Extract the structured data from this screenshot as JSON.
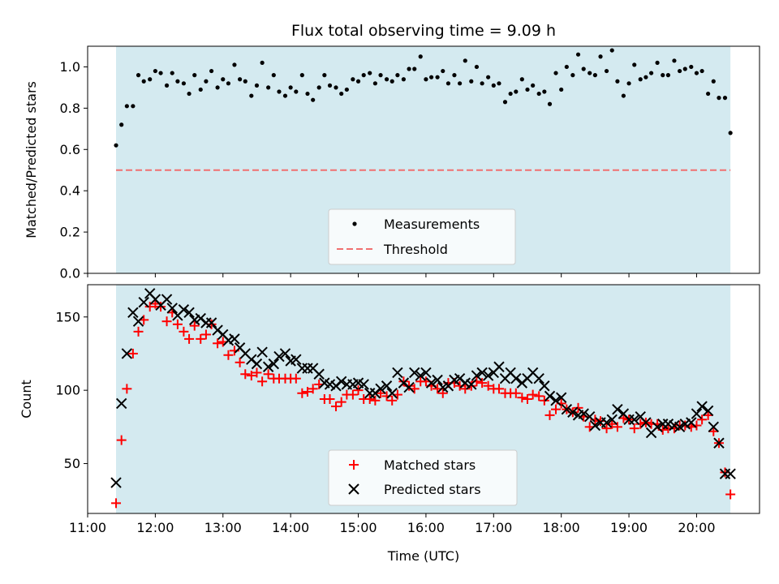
{
  "chart_data": {
    "title": "Flux total observing time = 9.09 h",
    "xlabel": "Time (UTC)",
    "x_unit": "hours UTC",
    "xlim": [
      11.0,
      20.93
    ],
    "xticks": [
      "11:00",
      "12:00",
      "13:00",
      "14:00",
      "15:00",
      "16:00",
      "17:00",
      "18:00",
      "19:00",
      "20:00"
    ],
    "shade": {
      "start": 11.42,
      "end": 20.5,
      "color": "#d4eaf0"
    },
    "top": {
      "type": "scatter",
      "ylabel": "Matched/Predicted stars",
      "ylim": [
        0.0,
        1.1
      ],
      "yticks": [
        "0.0",
        "0.2",
        "0.4",
        "0.6",
        "0.8",
        "1.0"
      ],
      "threshold": 0.5,
      "legend": {
        "position": "bottom-center",
        "entries": [
          "Measurements",
          "Threshold"
        ]
      },
      "x": [
        11.42,
        11.5,
        11.58,
        11.67,
        11.75,
        11.83,
        11.92,
        12.0,
        12.08,
        12.17,
        12.25,
        12.33,
        12.42,
        12.5,
        12.58,
        12.67,
        12.75,
        12.83,
        12.92,
        13.0,
        13.08,
        13.17,
        13.25,
        13.33,
        13.42,
        13.5,
        13.58,
        13.67,
        13.75,
        13.83,
        13.92,
        14.0,
        14.08,
        14.17,
        14.25,
        14.33,
        14.42,
        14.5,
        14.58,
        14.67,
        14.75,
        14.83,
        14.92,
        15.0,
        15.08,
        15.17,
        15.25,
        15.33,
        15.42,
        15.5,
        15.58,
        15.67,
        15.75,
        15.83,
        15.92,
        16.0,
        16.08,
        16.17,
        16.25,
        16.33,
        16.42,
        16.5,
        16.58,
        16.67,
        16.75,
        16.83,
        16.92,
        17.0,
        17.08,
        17.17,
        17.25,
        17.33,
        17.42,
        17.5,
        17.58,
        17.67,
        17.75,
        17.83,
        17.92,
        18.0,
        18.08,
        18.17,
        18.25,
        18.33,
        18.42,
        18.5,
        18.58,
        18.67,
        18.75,
        18.83,
        18.92,
        19.0,
        19.08,
        19.17,
        19.25,
        19.33,
        19.42,
        19.5,
        19.58,
        19.67,
        19.75,
        19.83,
        19.92,
        20.0,
        20.08,
        20.17,
        20.25,
        20.33,
        20.42,
        20.5
      ],
      "values": [
        0.62,
        0.72,
        0.81,
        0.81,
        0.96,
        0.93,
        0.94,
        0.98,
        0.97,
        0.91,
        0.97,
        0.93,
        0.92,
        0.87,
        0.96,
        0.89,
        0.93,
        0.98,
        0.9,
        0.94,
        0.92,
        1.01,
        0.94,
        0.93,
        0.86,
        0.91,
        1.02,
        0.9,
        0.96,
        0.88,
        0.86,
        0.9,
        0.88,
        0.96,
        0.87,
        0.84,
        0.9,
        0.96,
        0.91,
        0.9,
        0.87,
        0.89,
        0.94,
        0.93,
        0.96,
        0.97,
        0.92,
        0.96,
        0.94,
        0.93,
        0.96,
        0.94,
        0.99,
        0.99,
        1.05,
        0.94,
        0.95,
        0.95,
        0.98,
        0.92,
        0.96,
        0.92,
        1.03,
        0.93,
        1.0,
        0.92,
        0.95,
        0.91,
        0.92,
        0.83,
        0.87,
        0.88,
        0.94,
        0.89,
        0.91,
        0.87,
        0.88,
        0.82,
        0.97,
        0.89,
        1.0,
        0.96,
        1.06,
        0.99,
        0.97,
        0.96,
        1.05,
        0.98,
        1.08,
        0.93,
        0.86,
        0.92,
        1.01,
        0.94,
        0.95,
        0.97,
        1.02,
        0.96,
        0.96,
        1.03,
        0.98,
        0.99,
        1.0,
        0.97,
        0.98,
        0.87,
        0.93,
        0.85,
        0.85,
        0.68
      ]
    },
    "bottom": {
      "type": "scatter",
      "ylabel": "Count",
      "ylim": [
        16,
        172
      ],
      "yticks": [
        "50",
        "100",
        "150"
      ],
      "legend": {
        "position": "bottom-center",
        "entries": [
          "Matched stars",
          "Predicted stars"
        ]
      },
      "series": [
        {
          "name": "Matched stars",
          "color": "#ff0000",
          "marker": "plus",
          "x": [
            11.42,
            11.5,
            11.58,
            11.67,
            11.75,
            11.83,
            11.92,
            12.0,
            12.08,
            12.17,
            12.25,
            12.33,
            12.42,
            12.5,
            12.58,
            12.67,
            12.75,
            12.83,
            12.92,
            13.0,
            13.08,
            13.17,
            13.25,
            13.33,
            13.42,
            13.5,
            13.58,
            13.67,
            13.75,
            13.83,
            13.92,
            14.0,
            14.08,
            14.17,
            14.25,
            14.33,
            14.42,
            14.5,
            14.58,
            14.67,
            14.75,
            14.83,
            14.92,
            15.0,
            15.08,
            15.17,
            15.25,
            15.33,
            15.42,
            15.5,
            15.58,
            15.67,
            15.75,
            15.83,
            15.92,
            16.0,
            16.08,
            16.17,
            16.25,
            16.33,
            16.42,
            16.5,
            16.58,
            16.67,
            16.75,
            16.83,
            16.92,
            17.0,
            17.08,
            17.17,
            17.25,
            17.33,
            17.42,
            17.5,
            17.58,
            17.67,
            17.75,
            17.83,
            17.92,
            18.0,
            18.08,
            18.17,
            18.25,
            18.33,
            18.42,
            18.5,
            18.58,
            18.67,
            18.75,
            18.83,
            18.92,
            19.0,
            19.08,
            19.17,
            19.25,
            19.33,
            19.42,
            19.5,
            19.58,
            19.67,
            19.75,
            19.83,
            19.92,
            20.0,
            20.08,
            20.17,
            20.25,
            20.33,
            20.42,
            20.5
          ],
          "values": [
            23,
            66,
            101,
            125,
            140,
            148,
            157,
            159,
            157,
            147,
            153,
            145,
            140,
            135,
            144,
            135,
            138,
            145,
            132,
            133,
            124,
            127,
            119,
            111,
            110,
            112,
            106,
            111,
            108,
            108,
            108,
            108,
            108,
            98,
            99,
            101,
            104,
            94,
            94,
            89,
            92,
            97,
            97,
            100,
            94,
            94,
            93,
            98,
            96,
            93,
            97,
            106,
            103,
            101,
            106,
            106,
            103,
            101,
            98,
            105,
            105,
            103,
            101,
            103,
            106,
            105,
            103,
            101,
            101,
            98,
            98,
            98,
            95,
            94,
            97,
            96,
            93,
            83,
            87,
            91,
            87,
            85,
            88,
            82,
            75,
            80,
            79,
            74,
            77,
            75,
            81,
            80,
            74,
            77,
            78,
            77,
            77,
            73,
            74,
            74,
            76,
            76,
            75,
            76,
            80,
            83,
            72,
            64,
            44,
            29
          ]
        },
        {
          "name": "Predicted stars",
          "color": "#000000",
          "marker": "x",
          "x": [
            11.42,
            11.5,
            11.58,
            11.67,
            11.75,
            11.83,
            11.92,
            12.0,
            12.08,
            12.17,
            12.25,
            12.33,
            12.42,
            12.5,
            12.58,
            12.67,
            12.75,
            12.83,
            12.92,
            13.0,
            13.08,
            13.17,
            13.25,
            13.33,
            13.42,
            13.5,
            13.58,
            13.67,
            13.75,
            13.83,
            13.92,
            14.0,
            14.08,
            14.17,
            14.25,
            14.33,
            14.42,
            14.5,
            14.58,
            14.67,
            14.75,
            14.83,
            14.92,
            15.0,
            15.08,
            15.17,
            15.25,
            15.33,
            15.42,
            15.5,
            15.58,
            15.67,
            15.75,
            15.83,
            15.92,
            16.0,
            16.08,
            16.17,
            16.25,
            16.33,
            16.42,
            16.5,
            16.58,
            16.67,
            16.75,
            16.83,
            16.92,
            17.0,
            17.08,
            17.17,
            17.25,
            17.33,
            17.42,
            17.5,
            17.58,
            17.67,
            17.75,
            17.83,
            17.92,
            18.0,
            18.08,
            18.17,
            18.25,
            18.33,
            18.42,
            18.5,
            18.58,
            18.67,
            18.75,
            18.83,
            18.92,
            19.0,
            19.08,
            19.17,
            19.25,
            19.33,
            19.42,
            19.5,
            19.58,
            19.67,
            19.75,
            19.83,
            19.92,
            20.0,
            20.08,
            20.17,
            20.25,
            20.33,
            20.42,
            20.5
          ],
          "values": [
            37,
            91,
            125,
            153,
            147,
            160,
            166,
            162,
            158,
            162,
            156,
            151,
            155,
            153,
            148,
            149,
            146,
            146,
            141,
            138,
            134,
            135,
            129,
            125,
            121,
            118,
            126,
            116,
            118,
            123,
            125,
            120,
            121,
            115,
            115,
            115,
            111,
            105,
            104,
            103,
            106,
            104,
            104,
            105,
            104,
            98,
            98,
            101,
            103,
            98,
            112,
            105,
            102,
            112,
            110,
            112,
            105,
            107,
            102,
            103,
            107,
            108,
            105,
            104,
            110,
            112,
            110,
            112,
            116,
            108,
            112,
            108,
            105,
            108,
            112,
            108,
            103,
            96,
            93,
            95,
            87,
            85,
            83,
            84,
            82,
            76,
            78,
            78,
            80,
            87,
            84,
            80,
            80,
            82,
            78,
            71,
            75,
            77,
            77,
            76,
            75,
            77,
            78,
            84,
            89,
            86,
            75,
            64,
            43,
            43
          ]
        }
      ]
    }
  }
}
